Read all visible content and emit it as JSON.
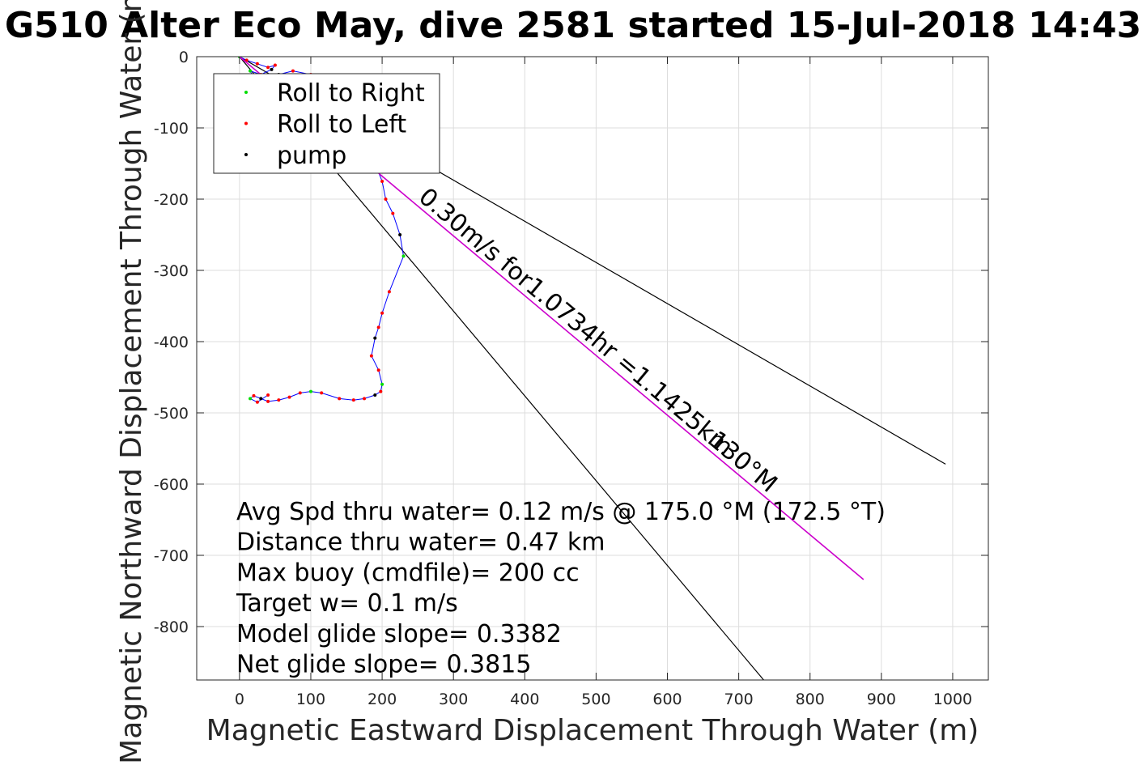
{
  "chart_data": {
    "type": "line",
    "title": "G510 Alter Eco May, dive 2581 started 15-Jul-2018 14:43",
    "xlabel": "Magnetic Eastward Displacement Through Water (m)",
    "ylabel": "Magnetic Northward Displacement Through Water (m)",
    "xlim": [
      -60,
      1050
    ],
    "ylim": [
      -875,
      0
    ],
    "xticks": [
      0,
      100,
      200,
      300,
      400,
      500,
      600,
      700,
      800,
      900,
      1000
    ],
    "yticks": [
      0,
      -100,
      -200,
      -300,
      -400,
      -500,
      -600,
      -700,
      -800
    ],
    "grid": true,
    "legend_position": "top-left",
    "legend": [
      {
        "name": "Roll to Right",
        "color": "#00dd00"
      },
      {
        "name": "Roll to Left",
        "color": "#ff0000"
      },
      {
        "name": "pump",
        "color": "#000000"
      }
    ],
    "colors": {
      "track": "#0000ff",
      "heading_line": "#cc00cc",
      "cone": "#000000"
    },
    "track": {
      "x": [
        0,
        10,
        25,
        40,
        50,
        45,
        30,
        15,
        20,
        35,
        55,
        75,
        100,
        140,
        170,
        185,
        190,
        200,
        205,
        215,
        225,
        230,
        210,
        200,
        195,
        190,
        185,
        195,
        200,
        198,
        190,
        175,
        160,
        140,
        115,
        100,
        85,
        70,
        55,
        40,
        30,
        20,
        15,
        25,
        40
      ],
      "y": [
        0,
        -5,
        -10,
        -15,
        -12,
        -18,
        -25,
        -20,
        -30,
        -35,
        -25,
        -20,
        -25,
        -35,
        -60,
        -100,
        -150,
        -175,
        -200,
        -220,
        -250,
        -280,
        -330,
        -360,
        -380,
        -395,
        -420,
        -440,
        -460,
        -470,
        -475,
        -480,
        -482,
        -480,
        -472,
        -470,
        -472,
        -478,
        -482,
        -484,
        -480,
        -476,
        -480,
        -485,
        -475
      ]
    },
    "heading_line": {
      "x": [
        0,
        875
      ],
      "y": [
        0,
        -734
      ]
    },
    "cone_lines": [
      {
        "x": [
          0,
          990
        ],
        "y": [
          0,
          -572
        ]
      },
      {
        "x": [
          0,
          735
        ],
        "y": [
          0,
          -875
        ]
      }
    ],
    "annotations": {
      "heading_text": "0.30m/s for1.0734hr =1.1425km",
      "heading_label": "130°M"
    },
    "stats": [
      "Avg Spd thru water=  0.12 m/s @ 175.0 °M (172.5 °T)",
      "Distance thru water=  0.47 km",
      "Max buoy (cmdfile)= 200 cc",
      "Target w= 0.1 m/s",
      "Model glide slope= 0.3382",
      "Net glide slope= 0.3815"
    ]
  }
}
